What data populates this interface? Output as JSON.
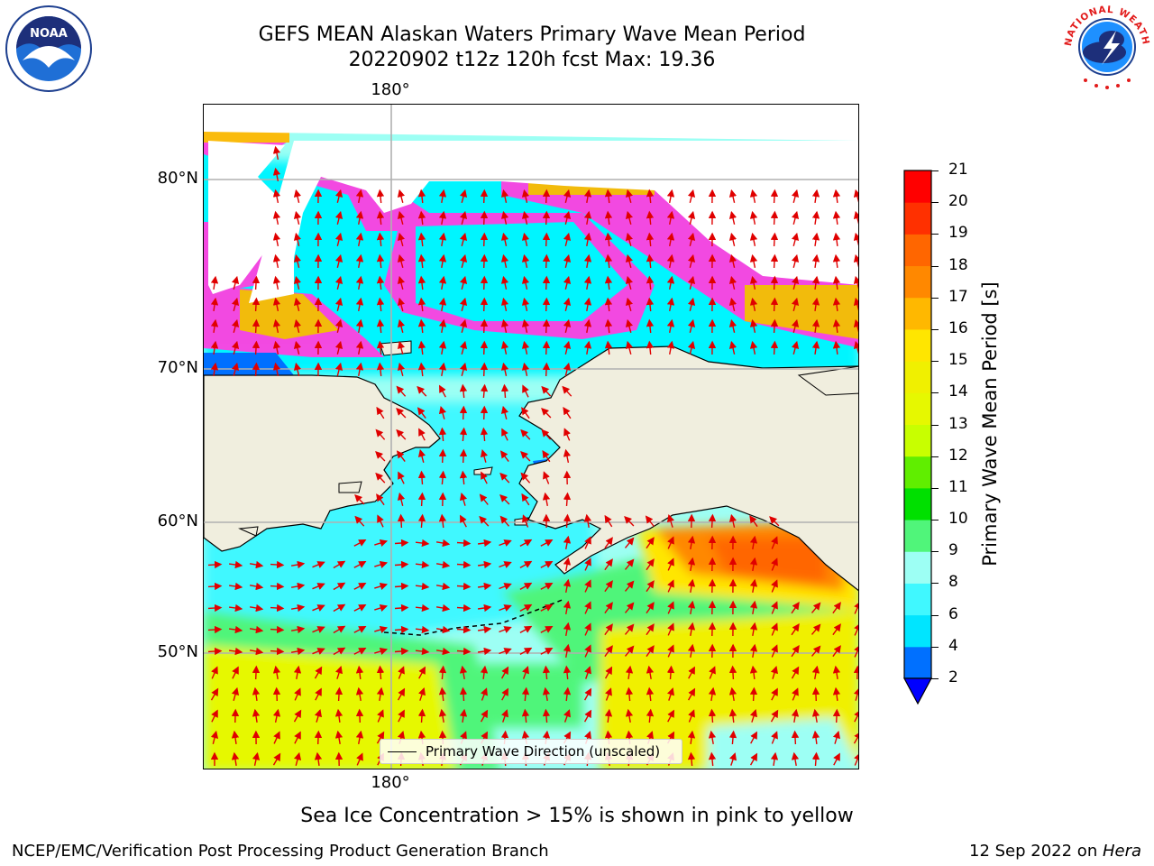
{
  "header": {
    "title": "GEFS MEAN Alaskan Waters Primary Wave Mean Period",
    "subtitle": "20220902 t12z 120h fcst   Max: 19.36"
  },
  "logos": {
    "left": {
      "text": "NOAA",
      "icon": "noaa-logo-icon"
    },
    "right": {
      "text": "NATIONAL WEATHER SERVICE",
      "icon": "nws-logo-icon"
    }
  },
  "map": {
    "lon_top": "180°",
    "lon_bottom": "180°",
    "lat_labels": [
      "80°N",
      "70°N",
      "60°N",
      "50°N"
    ],
    "legend_label": "Primary Wave Direction (unscaled)",
    "colors": {
      "land": "#f0eede",
      "arrow": "#e00000",
      "gridline": "#b0b0b0"
    }
  },
  "colorbar": {
    "label": "Primary Wave Mean Period [s]",
    "ticks": [
      "2",
      "4",
      "6",
      "8",
      "9",
      "10",
      "11",
      "12",
      "13",
      "14",
      "15",
      "16",
      "17",
      "18",
      "19",
      "20",
      "21"
    ],
    "colors": [
      "#0070ff",
      "#00e5ff",
      "#40f8ff",
      "#9dfff4",
      "#50f57a",
      "#00e000",
      "#60ee00",
      "#c8ff00",
      "#e6f800",
      "#f0f000",
      "#ffe600",
      "#ffb800",
      "#ff8800",
      "#ff6600",
      "#ff3000",
      "#ff0000"
    ],
    "extend_color": "#0000ff"
  },
  "notes": {
    "ice": "Sea Ice Concentration > 15% is shown in pink to yellow",
    "footer_left": "NCEP/EMC/Verification Post Processing Product Generation Branch",
    "footer_date": "12 Sep 2022 on ",
    "footer_host": "Hera"
  }
}
